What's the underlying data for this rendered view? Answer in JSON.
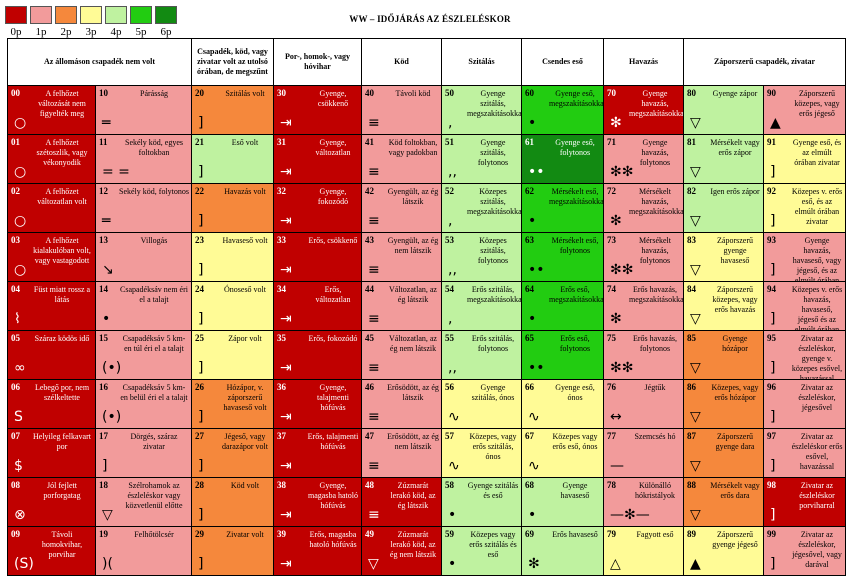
{
  "legend": [
    {
      "label": "0p",
      "color": "#c00000"
    },
    {
      "label": "1p",
      "color": "#f29b9b"
    },
    {
      "label": "2p",
      "color": "#f5883c"
    },
    {
      "label": "3p",
      "color": "#fffb96"
    },
    {
      "label": "4p",
      "color": "#bff2a0"
    },
    {
      "label": "5p",
      "color": "#22cc11"
    },
    {
      "label": "6p",
      "color": "#128a12"
    }
  ],
  "title": "WW – IDŐJÁRÁS AZ ÉSZLELÉSKOR",
  "headers": [
    "Az állomáson csapadék nem volt",
    "",
    "Csapadék, köd, vagy zivatar volt az utolsó órában, de megszűnt",
    "Por-, homok-, vagy hóvihar",
    "Köd",
    "Szitálás",
    "Csendes eső",
    "Havazás",
    "Záporszerű csapadék, zivatar",
    ""
  ],
  "rows": [
    [
      {
        "n": "00",
        "t": "A felhőzet változását nem figyelték meg",
        "c": "c0",
        "s": "○"
      },
      {
        "n": "10",
        "t": "Párásság",
        "c": "c1",
        "s": "═"
      },
      {
        "n": "20",
        "t": "Szitálás volt",
        "c": "c2",
        "s": "]"
      },
      {
        "n": "30",
        "t": "Gyenge, csökkenő",
        "c": "c0",
        "s": "⇥"
      },
      {
        "n": "40",
        "t": "Távoli köd",
        "c": "c1",
        "s": "≡"
      },
      {
        "n": "50",
        "t": "Gyenge szitálás, megszakításokkal",
        "c": "c4",
        "s": ","
      },
      {
        "n": "60",
        "t": "Gyenge eső, megszakításokkal",
        "c": "c5",
        "s": "•"
      },
      {
        "n": "70",
        "t": "Gyenge havazás, megszakításokkal",
        "c": "c0",
        "s": "✻"
      },
      {
        "n": "80",
        "t": "Gyenge zápor",
        "c": "c4",
        "s": "▽"
      },
      {
        "n": "90",
        "t": "Záporszerű közepes, vagy erős jégeső",
        "c": "c1",
        "s": "▲"
      }
    ],
    [
      {
        "n": "01",
        "t": "A felhőzet szétoszlik, vagy vékonyodik",
        "c": "c0",
        "s": "○"
      },
      {
        "n": "11",
        "t": "Sekély köd, egyes foltokban",
        "c": "c1",
        "s": "= ="
      },
      {
        "n": "21",
        "t": "Eső volt",
        "c": "c4",
        "s": "]"
      },
      {
        "n": "31",
        "t": "Gyenge, változatlan",
        "c": "c0",
        "s": "⇥"
      },
      {
        "n": "41",
        "t": "Köd foltokban, vagy padokban",
        "c": "c1",
        "s": "≡"
      },
      {
        "n": "51",
        "t": "Gyenge szitálás, folytonos",
        "c": "c4",
        "s": ",,"
      },
      {
        "n": "61",
        "t": "Gyenge eső, folytonos",
        "c": "c6",
        "s": "••"
      },
      {
        "n": "71",
        "t": "Gyenge havazás, folytonos",
        "c": "c1",
        "s": "✻✻"
      },
      {
        "n": "81",
        "t": "Mérsékelt vagy erős zápor",
        "c": "c4",
        "s": "▽"
      },
      {
        "n": "91",
        "t": "Gyenge eső, és az elmúlt órában zivatar",
        "c": "c3",
        "s": "]"
      }
    ],
    [
      {
        "n": "02",
        "t": "A felhőzet változatlan volt",
        "c": "c0",
        "s": "○"
      },
      {
        "n": "12",
        "t": "Sekély köd, folytonos",
        "c": "c1",
        "s": "═"
      },
      {
        "n": "22",
        "t": "Havazás volt",
        "c": "c2",
        "s": "]"
      },
      {
        "n": "32",
        "t": "Gyenge, fokozódó",
        "c": "c0",
        "s": "⇥"
      },
      {
        "n": "42",
        "t": "Gyengült, az ég látszik",
        "c": "c1",
        "s": "≡"
      },
      {
        "n": "52",
        "t": "Közepes szitálás, megszakításokkal",
        "c": "c4",
        "s": ","
      },
      {
        "n": "62",
        "t": "Mérsékelt eső, megszakításokkal",
        "c": "c5",
        "s": "•"
      },
      {
        "n": "72",
        "t": "Mérsékelt havazás, megszakításokkal",
        "c": "c1",
        "s": "✻"
      },
      {
        "n": "82",
        "t": "Igen erős zápor",
        "c": "c4",
        "s": "▽"
      },
      {
        "n": "92",
        "t": "Közepes v. erős eső, és az elmúlt órában zivatar",
        "c": "c3",
        "s": "]"
      }
    ],
    [
      {
        "n": "03",
        "t": "A felhőzet kialakulóban volt, vagy vastagodott",
        "c": "c0",
        "s": "○"
      },
      {
        "n": "13",
        "t": "Villogás",
        "c": "c1",
        "s": "↘"
      },
      {
        "n": "23",
        "t": "Havaseső volt",
        "c": "c3",
        "s": "]"
      },
      {
        "n": "33",
        "t": "Erős, csökkenő",
        "c": "c0",
        "s": "⇥"
      },
      {
        "n": "43",
        "t": "Gyengült, az ég nem látszik",
        "c": "c1",
        "s": "≡"
      },
      {
        "n": "53",
        "t": "Közepes szitálás, folytonos",
        "c": "c4",
        "s": ",,"
      },
      {
        "n": "63",
        "t": "Mérsékelt eső, folytonos",
        "c": "c5",
        "s": "••"
      },
      {
        "n": "73",
        "t": "Mérsékelt havazás, folytonos",
        "c": "c1",
        "s": "✻✻"
      },
      {
        "n": "83",
        "t": "Záporszerű gyenge havaseső",
        "c": "c3",
        "s": "▽"
      },
      {
        "n": "93",
        "t": "Gyenge havazás, havaseső, vagy jégeső, és az elmúlt órában zivatar",
        "c": "c1",
        "s": "]"
      }
    ],
    [
      {
        "n": "04",
        "t": "Füst miatt rossz a látás",
        "c": "c0",
        "s": "⌇"
      },
      {
        "n": "14",
        "t": "Csapadéksáv nem éri el a talajt",
        "c": "c1",
        "s": "•"
      },
      {
        "n": "24",
        "t": "Ónoseső volt",
        "c": "c3",
        "s": "]"
      },
      {
        "n": "34",
        "t": "Erős, változatlan",
        "c": "c0",
        "s": "⇥"
      },
      {
        "n": "44",
        "t": "Változatlan, az ég látszik",
        "c": "c1",
        "s": "≡"
      },
      {
        "n": "54",
        "t": "Erős szitálás, megszakításokkal",
        "c": "c4",
        "s": ","
      },
      {
        "n": "64",
        "t": "Erős eső, megszakításokkal",
        "c": "c5",
        "s": "•"
      },
      {
        "n": "74",
        "t": "Erős havazás, megszakításokkal",
        "c": "c1",
        "s": "✻"
      },
      {
        "n": "84",
        "t": "Záporszerű közepes, vagy erős havazás",
        "c": "c3",
        "s": "▽"
      },
      {
        "n": "94",
        "t": "Közepes v. erős havazás, havaseső, jégeső és az elmúlt órában zivatar",
        "c": "c1",
        "s": "]"
      }
    ],
    [
      {
        "n": "05",
        "t": "Száraz ködös idő",
        "c": "c0",
        "s": "∞"
      },
      {
        "n": "15",
        "t": "Csapadéksáv 5 km-en túl éri el a talajt",
        "c": "c1",
        "s": "(•)"
      },
      {
        "n": "25",
        "t": "Zápor volt",
        "c": "c3",
        "s": "]"
      },
      {
        "n": "35",
        "t": "Erős, fokozódó",
        "c": "c0",
        "s": "⇥"
      },
      {
        "n": "45",
        "t": "Változatlan, az ég nem látszik",
        "c": "c1",
        "s": "≡"
      },
      {
        "n": "55",
        "t": "Erős szitálás, folytonos",
        "c": "c4",
        "s": ",,"
      },
      {
        "n": "65",
        "t": "Erős eső, folytonos",
        "c": "c5",
        "s": "••"
      },
      {
        "n": "75",
        "t": "Erős havazás, folytonos",
        "c": "c1",
        "s": "✻✻"
      },
      {
        "n": "85",
        "t": "Gyenge hózápor",
        "c": "c2",
        "s": "▽"
      },
      {
        "n": "95",
        "t": "Zivatar az észleléskor, gyenge v. közepes esővel, havazással",
        "c": "c1",
        "s": "]"
      }
    ],
    [
      {
        "n": "06",
        "t": "Lebegő por, nem szélkeltette",
        "c": "c0",
        "s": "S"
      },
      {
        "n": "16",
        "t": "Csapadéksáv 5 km-en belül éri el a talajt",
        "c": "c1",
        "s": "(•)"
      },
      {
        "n": "26",
        "t": "Hózápor, v. záporszerű havaseső volt",
        "c": "c2",
        "s": "]"
      },
      {
        "n": "36",
        "t": "Gyenge, talajmenti hófúvás",
        "c": "c0",
        "s": "⇥"
      },
      {
        "n": "46",
        "t": "Erősödött, az ég látszik",
        "c": "c1",
        "s": "≡"
      },
      {
        "n": "56",
        "t": "Gyenge szitálás, ónos",
        "c": "c3",
        "s": "∿"
      },
      {
        "n": "66",
        "t": "Gyenge eső, ónos",
        "c": "c3",
        "s": "∿"
      },
      {
        "n": "76",
        "t": "Jégtűk",
        "c": "c1",
        "s": "↔"
      },
      {
        "n": "86",
        "t": "Közepes, vagy erős hózápor",
        "c": "c2",
        "s": "▽"
      },
      {
        "n": "96",
        "t": "Zivatar az észleléskor, jégesővel",
        "c": "c1",
        "s": "]"
      }
    ],
    [
      {
        "n": "07",
        "t": "Helyileg felkavart por",
        "c": "c0",
        "s": "$"
      },
      {
        "n": "17",
        "t": "Dörgés, száraz zivatar",
        "c": "c1",
        "s": "]"
      },
      {
        "n": "27",
        "t": "Jégeső, vagy darazápor volt",
        "c": "c2",
        "s": "]"
      },
      {
        "n": "37",
        "t": "Erős, talajmenti hófúvás",
        "c": "c0",
        "s": "⇥"
      },
      {
        "n": "47",
        "t": "Erősödött, az ég nem látszik",
        "c": "c1",
        "s": "≡"
      },
      {
        "n": "57",
        "t": "Közepes, vagy erős szitálás, ónos",
        "c": "c3",
        "s": "∿"
      },
      {
        "n": "67",
        "t": "Közepes vagy erős eső, ónos",
        "c": "c3",
        "s": "∿"
      },
      {
        "n": "77",
        "t": "Szemcsés hó",
        "c": "c1",
        "s": "—"
      },
      {
        "n": "87",
        "t": "Záporszerű gyenge dara",
        "c": "c2",
        "s": "▽"
      },
      {
        "n": "97",
        "t": "Zivatar az észleléskor erős esővel, havazással",
        "c": "c1",
        "s": "]"
      }
    ],
    [
      {
        "n": "08",
        "t": "Jól fejlett porforgatag",
        "c": "c0",
        "s": "⊗"
      },
      {
        "n": "18",
        "t": "Szélrohamok az észleléskor vagy közvetlenül előtte",
        "c": "c1",
        "s": "▽"
      },
      {
        "n": "28",
        "t": "Köd volt",
        "c": "c2",
        "s": "]"
      },
      {
        "n": "38",
        "t": "Gyenge, magasba hatoló hófúvás",
        "c": "c0",
        "s": "⇥"
      },
      {
        "n": "48",
        "t": "Zúzmarát lerakó köd, az ég látszik",
        "c": "c0",
        "s": "≡"
      },
      {
        "n": "58",
        "t": "Gyenge szitálás és eső",
        "c": "c4",
        "s": "•"
      },
      {
        "n": "68",
        "t": "Gyenge havaseső",
        "c": "c4",
        "s": "•"
      },
      {
        "n": "78",
        "t": "Különálló hókristályok",
        "c": "c1",
        "s": "—✻—"
      },
      {
        "n": "88",
        "t": "Mérsékelt vagy erős dara",
        "c": "c2",
        "s": "▽"
      },
      {
        "n": "98",
        "t": "Zivatar az észleléskor porviharral",
        "c": "c0",
        "s": "]"
      }
    ],
    [
      {
        "n": "09",
        "t": "Távoli homokvihar, porvihar",
        "c": "c0",
        "s": "(S)"
      },
      {
        "n": "19",
        "t": "Felhőtölcsér",
        "c": "c1",
        "s": ")("
      },
      {
        "n": "29",
        "t": "Zivatar volt",
        "c": "c2",
        "s": "]"
      },
      {
        "n": "39",
        "t": "Erős, magasba hatoló hófúvás",
        "c": "c0",
        "s": "⇥"
      },
      {
        "n": "49",
        "t": "Zúzmarát lerakó köd, az ég nem látszik",
        "c": "c0",
        "s": "▽"
      },
      {
        "n": "59",
        "t": "Közepes vagy erős szitálás és eső",
        "c": "c4",
        "s": "•"
      },
      {
        "n": "69",
        "t": "Erős havaseső",
        "c": "c4",
        "s": "✻"
      },
      {
        "n": "79",
        "t": "Fagyott eső",
        "c": "c3",
        "s": "△"
      },
      {
        "n": "89",
        "t": "Záporszerű gyenge jégeső",
        "c": "c3",
        "s": "▲"
      },
      {
        "n": "99",
        "t": "Zivatar az észleléskor, jégesővel, vagy darával",
        "c": "c1",
        "s": "]"
      }
    ]
  ]
}
